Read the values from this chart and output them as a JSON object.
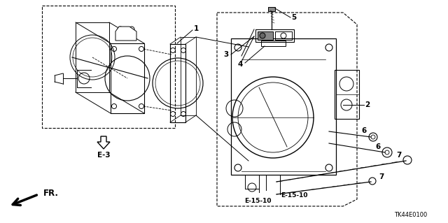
{
  "bg_color": "#ffffff",
  "line_color": "#000000",
  "figsize": [
    6.4,
    3.19
  ],
  "dpi": 100,
  "labels": {
    "part_ref": "TK44E0100",
    "fr_label": "FR.",
    "e3_label": "E-3",
    "e1510a": "E-15-10",
    "e1510b": "E-15-10",
    "n1": "1",
    "n2": "2",
    "n3": "3",
    "n4": "4",
    "n5": "5",
    "n6a": "6",
    "n6b": "6",
    "n7a": "7",
    "n7b": "7"
  }
}
